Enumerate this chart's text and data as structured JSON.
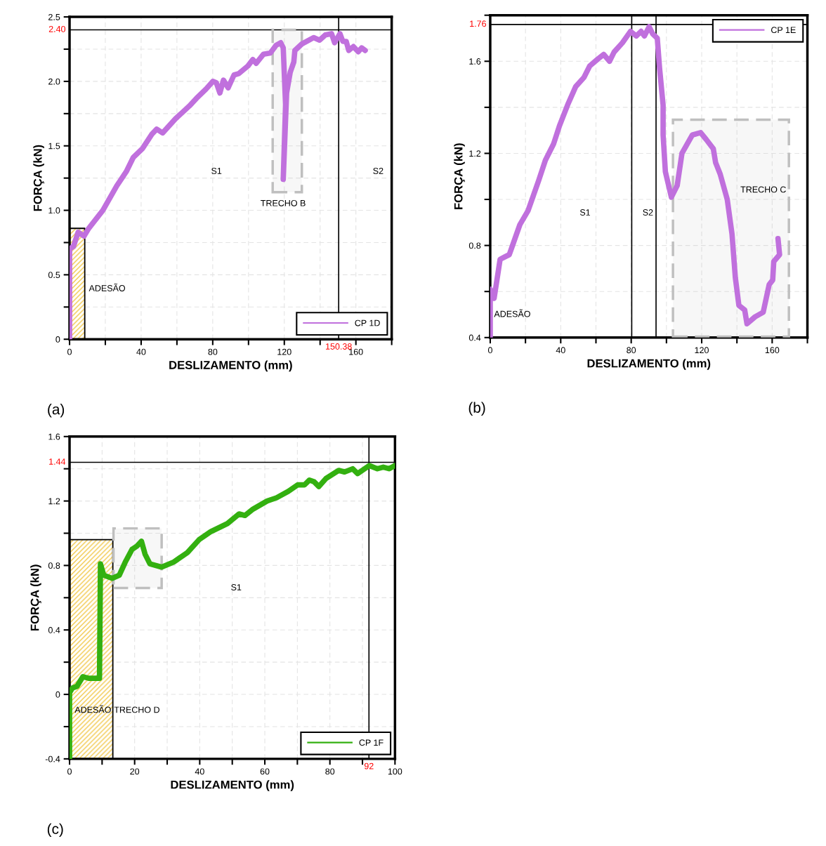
{
  "chart_data": [
    {
      "type": "line",
      "xlabel": "DESLIZAMENTO (mm)",
      "ylabel": "FORÇA (kN)",
      "xlim": [
        0,
        180
      ],
      "ylim": [
        0,
        2.5
      ],
      "xticks": [
        0,
        {
          "value": 20,
          "label": null
        },
        40,
        {
          "value": 60,
          "label": null
        },
        80,
        {
          "value": 100,
          "label": null
        },
        120,
        {
          "value": 140,
          "label": null
        },
        160,
        {
          "value": 180,
          "label": null
        }
      ],
      "yticks": [
        0,
        {
          "value": 0.25,
          "label": null
        },
        0.5,
        {
          "value": 0.75,
          "label": null
        },
        {
          "value": 1,
          "label": "1.0"
        },
        {
          "value": 1.25,
          "label": null
        },
        1.5,
        {
          "value": 1.75,
          "label": null
        },
        {
          "value": 2,
          "label": "2.0"
        },
        {
          "value": 2.25,
          "label": null
        },
        2.5
      ],
      "grid": true,
      "legend": "bottom right",
      "series": [
        {
          "type": "area",
          "color": "#f2c84b",
          "x": [
            0,
            0,
            8.5,
            8.5
          ],
          "values": [
            0,
            0.86,
            0.86,
            0
          ]
        },
        {
          "name": "CP 1D",
          "color": "#c070dd",
          "x": [
            0,
            0,
            2.2,
            4.8,
            8.1,
            10.7,
            18.6,
            26.4,
            31.7,
            35.6,
            40.8,
            46,
            48.7,
            52,
            59.2,
            67,
            71,
            76.2,
            80.1,
            82,
            84,
            86,
            88.6,
            91.9,
            94.5,
            99.7,
            102.4,
            104.3,
            108.3,
            112.2,
            115.4,
            118,
            119.4,
            120.7,
            119.4,
            121.3,
            123.3,
            125.3,
            125.9,
            129.8,
            133.8,
            136.4,
            139.7,
            142.9,
            146.4,
            148.1,
            151.1,
            152.7,
            154.6,
            156,
            158.6,
            161.3,
            163.2,
            165.2
          ],
          "values": [
            0,
            0.7,
            0.72,
            0.83,
            0.8,
            0.86,
            1.0,
            1.19,
            1.3,
            1.41,
            1.48,
            1.59,
            1.63,
            1.6,
            1.71,
            1.81,
            1.87,
            1.94,
            2.0,
            1.99,
            1.91,
            2.01,
            1.95,
            2.05,
            2.06,
            2.12,
            2.17,
            2.14,
            2.21,
            2.22,
            2.28,
            2.3,
            2.26,
            1.82,
            1.24,
            1.91,
            2.07,
            2.15,
            2.24,
            2.29,
            2.32,
            2.34,
            2.32,
            2.36,
            2.37,
            2.3,
            2.37,
            2.31,
            2.31,
            2.24,
            2.27,
            2.23,
            2.26,
            2.24
          ]
        }
      ],
      "ref_lines": [
        {
          "axis": "y",
          "value": 2.4,
          "label": "2.40",
          "color": "#000000"
        },
        {
          "axis": "x",
          "value": 150.38,
          "label": "150.38",
          "color": "#000000"
        }
      ],
      "bands": [
        {
          "axis": "x",
          "from": 113.5,
          "to": 129.8,
          "color": "#bfbfbf"
        }
      ],
      "annotations": [
        "S1",
        "S2",
        "TRECHO B",
        "ADESÃO",
        "(a)"
      ]
    },
    {
      "type": "line",
      "xlabel": "DESLIZAMENTO (mm)",
      "ylabel": "FORÇA (kN)",
      "xlim": [
        0,
        180
      ],
      "ylim": [
        0.4,
        1.8
      ],
      "xticks": [
        0,
        {
          "value": 20,
          "label": null
        },
        40,
        {
          "value": 60,
          "label": null
        },
        80,
        {
          "value": 100,
          "label": null
        },
        120,
        {
          "value": 140,
          "label": null
        },
        160,
        {
          "value": 180,
          "label": null
        }
      ],
      "yticks": [
        0.4,
        {
          "value": 0.6,
          "label": null
        },
        0.8,
        {
          "value": 1,
          "label": null
        },
        1.2,
        {
          "value": 1.4,
          "label": null
        },
        1.6,
        {
          "value": 1.8,
          "label": null
        }
      ],
      "grid": true,
      "legend": "top right",
      "series": [
        {
          "name": "CP 1E",
          "color": "#c070dd",
          "x": [
            0,
            0,
            2.2,
            5.6,
            8.2,
            10.8,
            12.2,
            16.8,
            21.4,
            27.4,
            31.3,
            35.9,
            39.3,
            43.9,
            48.5,
            53.2,
            56.5,
            61.1,
            64.4,
            67.7,
            70.3,
            75,
            79.6,
            82.9,
            85.6,
            87.5,
            90.2,
            92.1,
            94.8,
            96.1,
            98.1,
            98.1,
            99.4,
            102.8,
            106.1,
            108.8,
            114.7,
            119.4,
            122.6,
            126.6,
            127.9,
            130.5,
            134.5,
            137.2,
            139.1,
            141.1,
            144.4,
            145.7,
            150.3,
            154.9,
            158.3,
            160.3,
            160.9,
            164.2,
            163.3
          ],
          "values": [
            0.4,
            0.61,
            0.57,
            0.74,
            0.75,
            0.76,
            0.79,
            0.89,
            0.95,
            1.08,
            1.17,
            1.24,
            1.32,
            1.41,
            1.49,
            1.53,
            1.58,
            1.61,
            1.63,
            1.6,
            1.64,
            1.68,
            1.73,
            1.71,
            1.73,
            1.71,
            1.75,
            1.72,
            1.7,
            1.57,
            1.41,
            1.28,
            1.12,
            1.01,
            1.06,
            1.2,
            1.28,
            1.29,
            1.26,
            1.22,
            1.16,
            1.11,
            1.0,
            0.85,
            0.66,
            0.54,
            0.52,
            0.46,
            0.49,
            0.51,
            0.63,
            0.65,
            0.73,
            0.76,
            0.83
          ]
        }
      ],
      "ref_lines": [
        {
          "axis": "y",
          "value": 1.76,
          "label": "1.76",
          "color": "#000000"
        },
        {
          "axis": "x",
          "value": 80.3,
          "label": null,
          "color": "#000000"
        },
        {
          "axis": "x",
          "value": 94.1,
          "label": null,
          "color": "#000000"
        }
      ],
      "bands": [
        {
          "axis": "x",
          "from": 103.7,
          "to": 169.5,
          "color": "#bfbfbf"
        }
      ],
      "annotations": [
        "S1",
        "S2",
        "TRECHO C",
        "ADESÃO",
        "(b)"
      ]
    },
    {
      "type": "line",
      "xlabel": "DESLIZAMENTO (mm)",
      "ylabel": "FORÇA (kN)",
      "xlim": [
        0,
        100
      ],
      "ylim": [
        -0.4,
        1.6
      ],
      "xticks": [
        0,
        {
          "value": 10,
          "label": null
        },
        20,
        {
          "value": 30,
          "label": null
        },
        40,
        {
          "value": 50,
          "label": null
        },
        60,
        {
          "value": 70,
          "label": null
        },
        80,
        {
          "value": 90,
          "label": null
        },
        100
      ],
      "yticks": [
        {
          "value": -0.4,
          "label": "-0.4"
        },
        {
          "value": -0.2,
          "label": null
        },
        0,
        {
          "value": 0.2,
          "label": null
        },
        0.4,
        {
          "value": 0.6,
          "label": null
        },
        0.8,
        {
          "value": 1,
          "label": null
        },
        1.2,
        {
          "value": 1.4,
          "label": null
        },
        1.6
      ],
      "grid": true,
      "legend": "bottom right",
      "series": [
        {
          "type": "area",
          "color": "#f2c84b",
          "x": [
            0,
            0,
            13.3,
            13.3
          ],
          "values": [
            -0.4,
            0.96,
            0.96,
            -0.4
          ]
        },
        {
          "name": "CP 1F",
          "color": "#33b010",
          "x": [
            0,
            0,
            0.9,
            2.3,
            4.1,
            5.9,
            9.2,
            9.5,
            10.5,
            13.1,
            15.3,
            17.1,
            19.2,
            20.7,
            22.1,
            23.2,
            24.7,
            28.3,
            31.9,
            36.2,
            39.8,
            43.4,
            48.5,
            52.1,
            53.9,
            56.4,
            60.7,
            63.6,
            67.2,
            70.1,
            72.2,
            73.7,
            75.1,
            76.6,
            78.8,
            82.7,
            84.5,
            87.0,
            88.5,
            92.1,
            94.6,
            96.4,
            98.2,
            100
          ],
          "values": [
            -0.4,
            0.01,
            0.04,
            0.05,
            0.11,
            0.1,
            0.1,
            0.81,
            0.74,
            0.72,
            0.74,
            0.82,
            0.9,
            0.92,
            0.95,
            0.87,
            0.81,
            0.79,
            0.82,
            0.88,
            0.96,
            1.01,
            1.06,
            1.12,
            1.11,
            1.15,
            1.2,
            1.22,
            1.26,
            1.3,
            1.3,
            1.33,
            1.32,
            1.29,
            1.34,
            1.39,
            1.38,
            1.4,
            1.37,
            1.42,
            1.4,
            1.41,
            1.4,
            1.42
          ]
        }
      ],
      "ref_lines": [
        {
          "axis": "y",
          "value": 1.44,
          "label": "1.44",
          "color": "#000000"
        },
        {
          "axis": "x",
          "value": 92,
          "label": "92",
          "color": "#000000"
        }
      ],
      "bands": [
        {
          "axis": "x",
          "from": 13.5,
          "to": 28.3,
          "color": "#bfbfbf"
        }
      ],
      "annotations": [
        "S1",
        "TRECHO D",
        "ADESÃO",
        "(c)"
      ]
    }
  ]
}
